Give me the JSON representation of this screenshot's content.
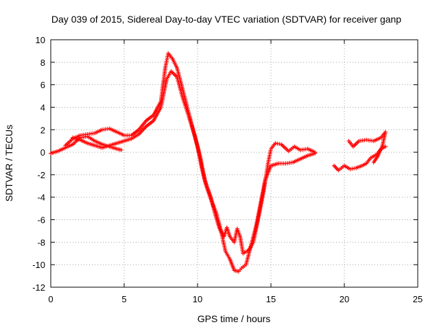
{
  "chart_data": {
    "type": "scatter",
    "title": "Day 039 of 2015, Sidereal Day-to-day VTEC variation (SDTVAR) for receiver ganp",
    "xlabel": "GPS time / hours",
    "ylabel": "SDTVAR / TECUs",
    "xlim": [
      0,
      25
    ],
    "ylim": [
      -12,
      10
    ],
    "xticks": [
      0,
      5,
      10,
      15,
      20,
      25
    ],
    "yticks": [
      -12,
      -10,
      -8,
      -6,
      -4,
      -2,
      0,
      2,
      4,
      6,
      8,
      10
    ],
    "grid": true,
    "legend": "none",
    "marker": "+",
    "color": "#ff0000",
    "series": [
      {
        "values_xy": [
          [
            0.0,
            -0.1
          ],
          [
            0.5,
            0.1
          ],
          [
            1.0,
            0.4
          ],
          [
            1.5,
            0.7
          ],
          [
            2.0,
            1.3
          ],
          [
            2.5,
            1.4
          ],
          [
            3.0,
            1.0
          ],
          [
            3.5,
            0.7
          ],
          [
            4.0,
            0.5
          ],
          [
            4.5,
            0.3
          ],
          [
            4.8,
            0.2
          ]
        ]
      },
      {
        "values_xy": [
          [
            1.0,
            0.6
          ],
          [
            1.5,
            1.2
          ],
          [
            2.0,
            1.5
          ],
          [
            2.5,
            1.6
          ],
          [
            3.0,
            1.7
          ],
          [
            3.5,
            2.0
          ],
          [
            4.0,
            2.1
          ],
          [
            4.5,
            1.8
          ],
          [
            5.0,
            1.5
          ],
          [
            5.5,
            1.5
          ],
          [
            6.0,
            2.0
          ],
          [
            6.5,
            2.8
          ],
          [
            7.0,
            3.3
          ],
          [
            7.5,
            4.5
          ],
          [
            7.8,
            7.5
          ],
          [
            8.0,
            8.8
          ],
          [
            8.3,
            8.3
          ],
          [
            8.6,
            7.5
          ],
          [
            9.0,
            5.5
          ],
          [
            9.3,
            4.0
          ],
          [
            9.6,
            2.5
          ],
          [
            10.0,
            0.5
          ],
          [
            10.3,
            -1.5
          ],
          [
            10.6,
            -3.0
          ],
          [
            11.0,
            -4.5
          ],
          [
            11.3,
            -5.5
          ],
          [
            11.6,
            -7.0
          ],
          [
            11.9,
            -8.8
          ],
          [
            12.2,
            -9.5
          ],
          [
            12.5,
            -10.5
          ],
          [
            12.8,
            -10.6
          ],
          [
            13.0,
            -10.3
          ],
          [
            13.3,
            -10.0
          ],
          [
            13.6,
            -8.5
          ],
          [
            14.0,
            -6.5
          ],
          [
            14.3,
            -4.5
          ],
          [
            14.6,
            -2.5
          ],
          [
            15.0,
            -1.2
          ],
          [
            15.5,
            -1.0
          ],
          [
            16.0,
            -1.0
          ],
          [
            16.5,
            -0.9
          ],
          [
            17.0,
            -0.6
          ],
          [
            17.5,
            -0.3
          ],
          [
            18.0,
            -0.1
          ]
        ]
      },
      {
        "values_xy": [
          [
            1.5,
            1.3
          ],
          [
            2.0,
            1.1
          ],
          [
            2.5,
            0.8
          ],
          [
            3.0,
            0.6
          ],
          [
            3.5,
            0.4
          ],
          [
            5.5,
            1.2
          ],
          [
            6.0,
            1.6
          ],
          [
            6.5,
            2.3
          ],
          [
            7.0,
            2.8
          ],
          [
            7.5,
            4.0
          ],
          [
            7.9,
            6.5
          ],
          [
            8.2,
            7.2
          ],
          [
            8.6,
            6.7
          ],
          [
            9.0,
            4.8
          ],
          [
            9.4,
            3.2
          ],
          [
            9.8,
            1.5
          ],
          [
            10.2,
            -0.5
          ],
          [
            10.5,
            -2.5
          ],
          [
            10.9,
            -4.0
          ],
          [
            11.2,
            -5.5
          ],
          [
            11.5,
            -6.8
          ],
          [
            11.8,
            -7.5
          ],
          [
            12.0,
            -6.7
          ],
          [
            12.2,
            -7.5
          ],
          [
            12.5,
            -8.0
          ],
          [
            12.7,
            -6.8
          ],
          [
            12.9,
            -7.5
          ],
          [
            13.1,
            -9.0
          ],
          [
            13.5,
            -8.7
          ],
          [
            13.8,
            -8.0
          ],
          [
            14.2,
            -5.5
          ],
          [
            14.5,
            -3.5
          ],
          [
            14.8,
            -1.0
          ],
          [
            15.0,
            0.3
          ],
          [
            15.3,
            0.8
          ],
          [
            15.7,
            0.7
          ],
          [
            16.2,
            0.1
          ],
          [
            16.6,
            0.5
          ],
          [
            17.0,
            0.2
          ],
          [
            17.5,
            0.3
          ],
          [
            18.0,
            0.0
          ]
        ]
      },
      {
        "values_xy": [
          [
            19.3,
            -1.2
          ],
          [
            19.6,
            -1.6
          ],
          [
            20.0,
            -1.2
          ],
          [
            20.4,
            -1.5
          ],
          [
            20.8,
            -1.4
          ],
          [
            21.2,
            -1.2
          ],
          [
            21.5,
            -1.0
          ],
          [
            21.8,
            -0.5
          ],
          [
            22.2,
            -0.2
          ],
          [
            22.5,
            0.3
          ],
          [
            22.8,
            0.5
          ]
        ]
      },
      {
        "values_xy": [
          [
            20.3,
            1.0
          ],
          [
            20.6,
            0.5
          ],
          [
            21.0,
            1.0
          ],
          [
            21.5,
            1.1
          ],
          [
            22.0,
            1.0
          ],
          [
            22.5,
            1.3
          ],
          [
            22.8,
            1.8
          ],
          [
            22.6,
            0.6
          ],
          [
            22.3,
            -0.3
          ],
          [
            22.0,
            -0.9
          ]
        ]
      }
    ]
  }
}
